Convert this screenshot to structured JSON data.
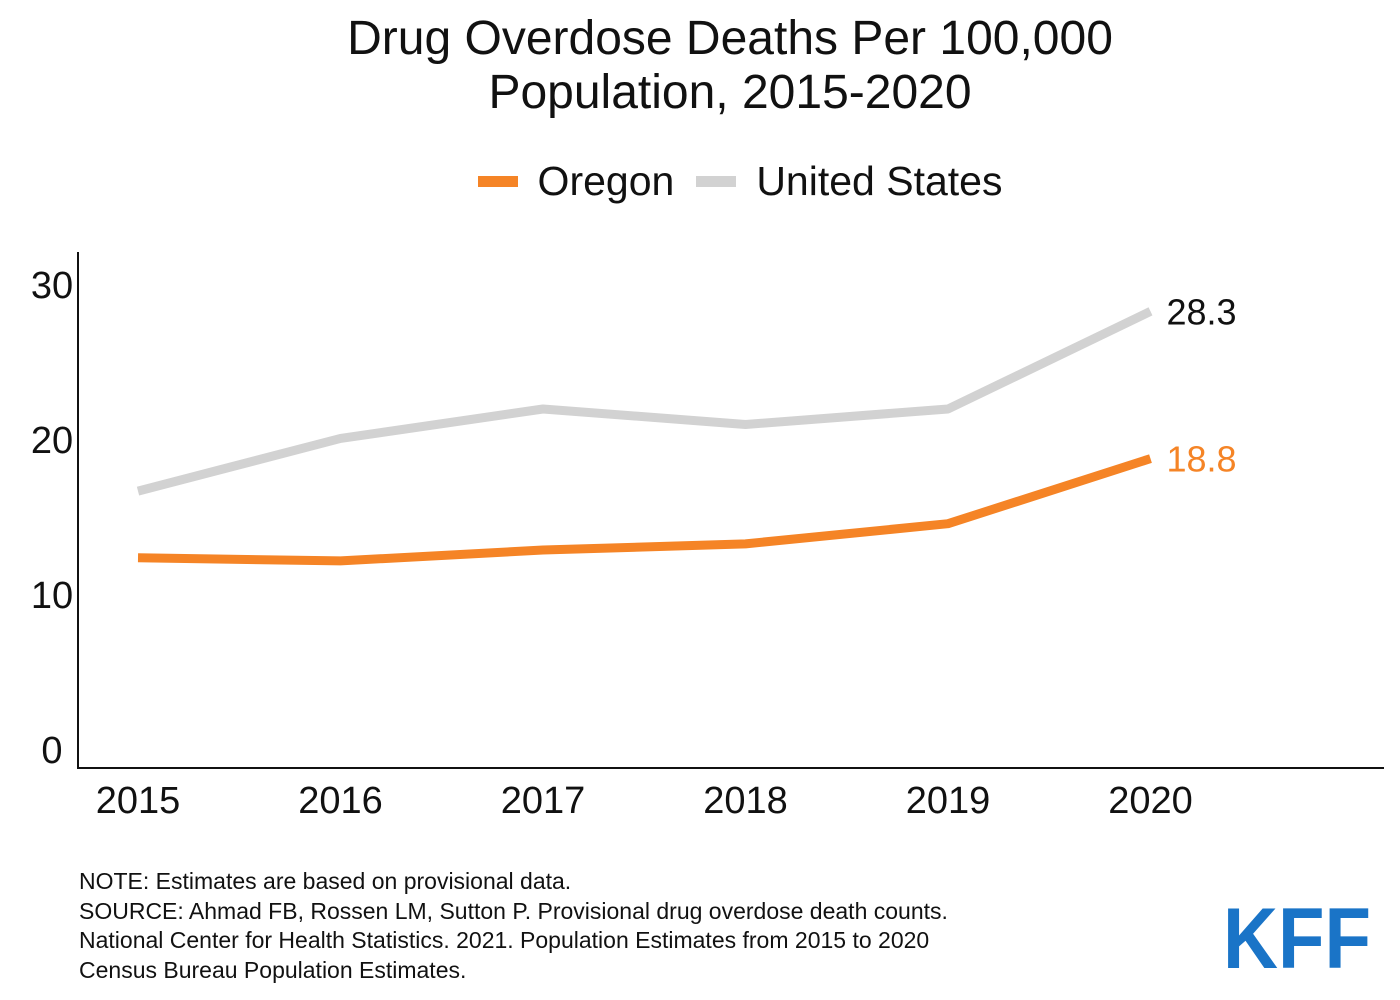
{
  "chart_data": {
    "type": "line",
    "title_lines": [
      "Drug Overdose Deaths Per 100,000",
      "Population, 2015-2020"
    ],
    "categories": [
      "2015",
      "2016",
      "2017",
      "2018",
      "2019",
      "2020"
    ],
    "series": [
      {
        "name": "Oregon",
        "color": "#f58426",
        "values": [
          12.4,
          12.2,
          12.9,
          13.3,
          14.6,
          18.8
        ],
        "end_label": "18.8"
      },
      {
        "name": "United States",
        "color": "#d2d2d2",
        "values": [
          16.7,
          20.1,
          22.0,
          21.0,
          22.0,
          28.3
        ],
        "end_label": "28.3"
      }
    ],
    "y_ticks": [
      "0",
      "10",
      "20",
      "30"
    ],
    "ylim": [
      0,
      31.5
    ],
    "grid": false,
    "legend_position": "top-center",
    "end_label_colors": [
      "#f58426",
      "#111111"
    ]
  },
  "notes": [
    "NOTE: Estimates are based on provisional data.",
    "SOURCE: Ahmad FB, Rossen LM, Sutton P. Provisional drug overdose death counts.",
    "National Center for Health Statistics. 2021. Population Estimates from 2015 to 2020",
    "Census Bureau Population Estimates."
  ],
  "logo": {
    "text": "KFF",
    "color": "#1a74c7"
  }
}
